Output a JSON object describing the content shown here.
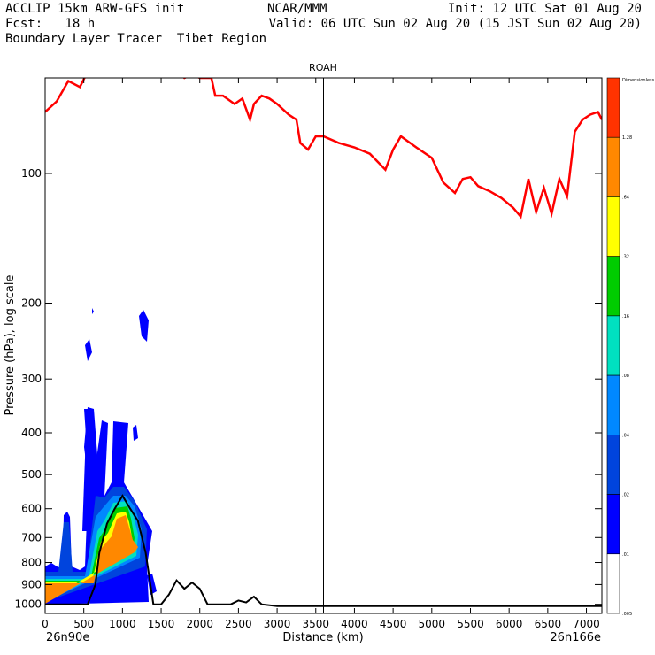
{
  "header": {
    "line1_left": "ACCLIP 15km ARW-GFS init",
    "line1_center": "NCAR/MMM",
    "line1_right": "Init: 12 UTC Sat 01 Aug 20",
    "line2_left": "Fcst:   18 h",
    "line2_right": "Valid: 06 UTC Sun 02 Aug 20 (15 JST Sun 02 Aug 20)",
    "line3_left": "Boundary Layer Tracer  Tibet Region"
  },
  "chart_data": {
    "type": "contour-cross-section",
    "title": "ROAH",
    "xlabel": "Distance (km)",
    "ylabel": "Pressure (hPa), log scale",
    "x_start_label": "26n90e",
    "x_end_label": "26n166e",
    "xlim": [
      0,
      7200
    ],
    "ylim": [
      1050,
      60
    ],
    "y_scale": "log",
    "x_ticks": [
      0,
      500,
      1000,
      1500,
      2000,
      2500,
      3000,
      3500,
      4000,
      4500,
      5000,
      5500,
      6000,
      6500,
      7000
    ],
    "y_ticks": [
      100,
      200,
      300,
      400,
      500,
      600,
      700,
      800,
      900,
      1000
    ],
    "vertical_line_x": 3600,
    "colorbar": {
      "title": "Dimensionless",
      "levels": [
        "2.56",
        "1.28",
        ".64",
        ".32",
        ".16",
        ".08",
        ".04",
        ".02",
        ".01",
        ".005"
      ],
      "colors": [
        "#ff3300",
        "#ff8800",
        "#ffff00",
        "#00cc00",
        "#00e0c0",
        "#0088ff",
        "#0044dd",
        "#0000ff",
        "#ffffff"
      ]
    },
    "tropopause_line": {
      "color": "#ff0000",
      "points": [
        [
          0,
          72
        ],
        [
          150,
          68
        ],
        [
          300,
          61
        ],
        [
          450,
          63
        ],
        [
          550,
          58
        ],
        [
          650,
          53
        ],
        [
          700,
          48
        ],
        [
          780,
          45
        ],
        [
          850,
          42
        ],
        [
          900,
          30
        ],
        [
          1000,
          30
        ],
        [
          1100,
          30
        ],
        [
          1250,
          45
        ],
        [
          1300,
          54
        ],
        [
          1400,
          56
        ],
        [
          1500,
          58
        ],
        [
          1600,
          59
        ],
        [
          1700,
          58
        ],
        [
          1800,
          60
        ],
        [
          1900,
          59
        ],
        [
          2000,
          60
        ],
        [
          2150,
          60
        ],
        [
          2200,
          66
        ],
        [
          2300,
          66
        ],
        [
          2450,
          69
        ],
        [
          2550,
          67
        ],
        [
          2650,
          75
        ],
        [
          2700,
          69
        ],
        [
          2800,
          66
        ],
        [
          2900,
          67
        ],
        [
          3000,
          69
        ],
        [
          3150,
          73
        ],
        [
          3250,
          75
        ],
        [
          3300,
          85
        ],
        [
          3400,
          88
        ],
        [
          3500,
          82
        ],
        [
          3600,
          82
        ],
        [
          3800,
          85
        ],
        [
          4000,
          87
        ],
        [
          4200,
          90
        ],
        [
          4400,
          98
        ],
        [
          4500,
          88
        ],
        [
          4600,
          82
        ],
        [
          4800,
          87
        ],
        [
          5000,
          92
        ],
        [
          5150,
          105
        ],
        [
          5300,
          111
        ],
        [
          5400,
          103
        ],
        [
          5500,
          102
        ],
        [
          5600,
          107
        ],
        [
          5750,
          110
        ],
        [
          5900,
          114
        ],
        [
          6050,
          120
        ],
        [
          6150,
          126
        ],
        [
          6250,
          103
        ],
        [
          6350,
          123
        ],
        [
          6450,
          108
        ],
        [
          6550,
          124
        ],
        [
          6650,
          103
        ],
        [
          6750,
          113
        ],
        [
          6850,
          80
        ],
        [
          6950,
          75
        ],
        [
          7050,
          73
        ],
        [
          7150,
          72
        ],
        [
          7200,
          75
        ]
      ]
    },
    "terrain_line": {
      "color": "#000000",
      "points": [
        [
          0,
          1000
        ],
        [
          300,
          1000
        ],
        [
          550,
          1000
        ],
        [
          650,
          900
        ],
        [
          700,
          760
        ],
        [
          800,
          650
        ],
        [
          900,
          600
        ],
        [
          1000,
          560
        ],
        [
          1100,
          600
        ],
        [
          1200,
          640
        ],
        [
          1300,
          760
        ],
        [
          1400,
          1000
        ],
        [
          1500,
          1000
        ],
        [
          1600,
          950
        ],
        [
          1700,
          880
        ],
        [
          1800,
          920
        ],
        [
          1900,
          890
        ],
        [
          2000,
          920
        ],
        [
          2100,
          1000
        ],
        [
          2400,
          1000
        ],
        [
          2500,
          980
        ],
        [
          2600,
          990
        ],
        [
          2700,
          960
        ],
        [
          2800,
          1000
        ],
        [
          3000,
          1010
        ],
        [
          4000,
          1010
        ],
        [
          5000,
          1010
        ],
        [
          6000,
          1010
        ],
        [
          7000,
          1010
        ],
        [
          7200,
          1010
        ]
      ]
    }
  }
}
